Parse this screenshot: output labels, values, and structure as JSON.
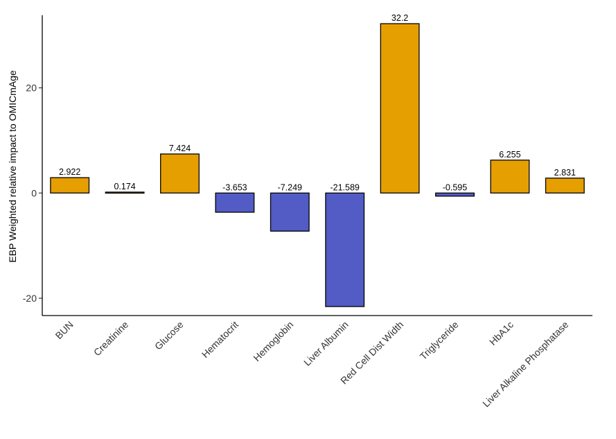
{
  "chart_data": {
    "type": "bar",
    "ylabel": "EBP Weighted relative impact to OMICmAge",
    "xlabel": "",
    "ylim": [
      -23.3,
      33.8
    ],
    "yticks": [
      -20,
      0,
      20
    ],
    "grid": false,
    "categories": [
      "BUN",
      "Creatinine",
      "Glucose",
      "Hematocrit",
      "Hemoglobin",
      "Liver Albumin",
      "Red Cell Dist Width",
      "Triglyceride",
      "HbA1c",
      "Liver Alkaline Phosphatase"
    ],
    "values": [
      2.922,
      0.174,
      7.424,
      -3.653,
      -7.249,
      -21.589,
      32.2,
      -0.595,
      6.255,
      2.831
    ],
    "labels": [
      "2.922",
      "0.174",
      "7.424",
      "-3.653",
      "-7.249",
      "-21.589",
      "32.2",
      "-0.595",
      "6.255",
      "2.831"
    ],
    "colors": {
      "positive": "#E69F00",
      "negative": "#525CC4",
      "outline": "#000000"
    }
  }
}
